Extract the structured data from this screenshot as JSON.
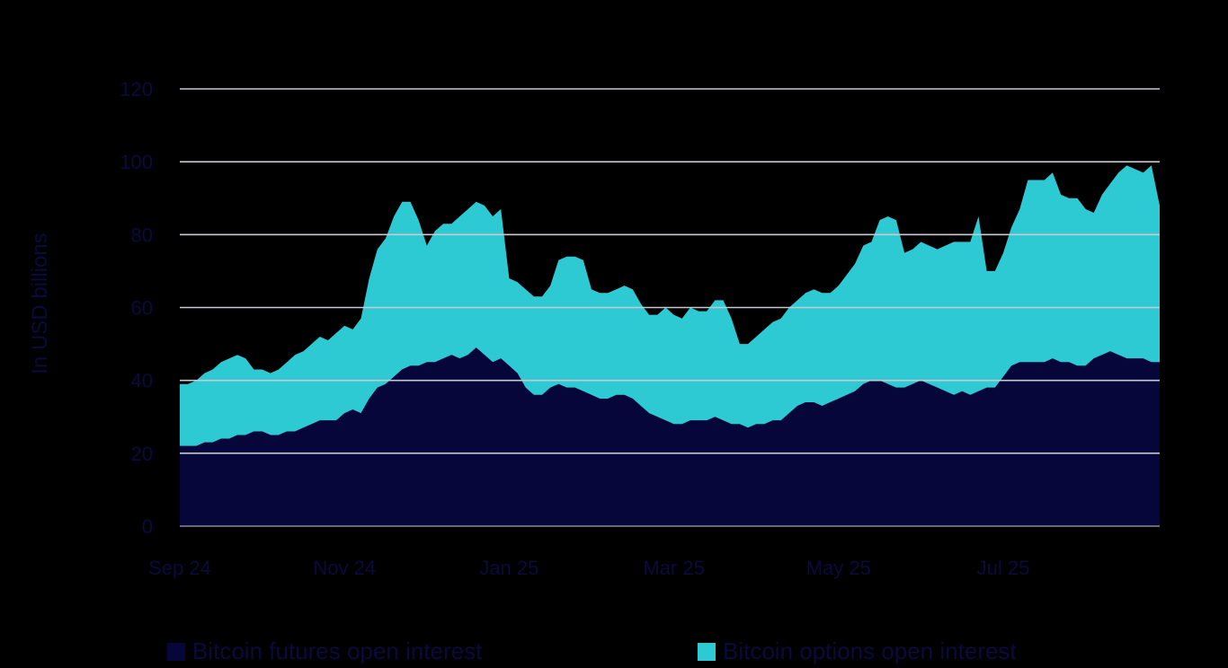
{
  "chart_data": {
    "type": "area",
    "stacked": true,
    "ylabel": "In USD billions",
    "ylim": [
      0,
      120
    ],
    "yticks": [
      0,
      20,
      40,
      60,
      80,
      100,
      120
    ],
    "grid": true,
    "x_tick_labels": [
      "Sep 24",
      "Nov 24",
      "Jan 25",
      "Mar 25",
      "May 25",
      "Jul 25"
    ],
    "x_tick_index": [
      0,
      20,
      40,
      60,
      80,
      100
    ],
    "x_count": 120,
    "legend_position": "bottom",
    "series": [
      {
        "name": "Bitcoin futures open interest",
        "color": "#06063a",
        "values": [
          22,
          22,
          22,
          23,
          23,
          24,
          24,
          25,
          25,
          26,
          26,
          25,
          25,
          26,
          26,
          27,
          28,
          29,
          29,
          29,
          31,
          32,
          31,
          35,
          38,
          39,
          41,
          43,
          44,
          44,
          45,
          45,
          46,
          47,
          46,
          47,
          49,
          47,
          45,
          46,
          44,
          42,
          38,
          36,
          36,
          38,
          39,
          38,
          38,
          37,
          36,
          35,
          35,
          36,
          36,
          35,
          33,
          31,
          30,
          29,
          28,
          28,
          29,
          29,
          29,
          30,
          29,
          28,
          28,
          27,
          28,
          28,
          29,
          29,
          31,
          33,
          34,
          34,
          33,
          34,
          35,
          36,
          37,
          39,
          40,
          40,
          39,
          38,
          38,
          39,
          40,
          39,
          38,
          37,
          36,
          37,
          36,
          37,
          38,
          38,
          41,
          44,
          45,
          45,
          45,
          45,
          46,
          45,
          45,
          44,
          44,
          46,
          47,
          48,
          47,
          46,
          46,
          46,
          45,
          45
        ]
      },
      {
        "name": "Bitcoin options open interest",
        "color": "#2ecad4",
        "values": [
          17,
          17,
          18,
          19,
          20,
          21,
          22,
          22,
          21,
          17,
          17,
          17,
          18,
          19,
          21,
          21,
          22,
          23,
          22,
          24,
          24,
          22,
          26,
          33,
          38,
          40,
          44,
          46,
          45,
          40,
          32,
          36,
          37,
          36,
          39,
          40,
          40,
          41,
          40,
          41,
          24,
          25,
          27,
          27,
          27,
          28,
          34,
          36,
          36,
          36,
          29,
          29,
          29,
          29,
          30,
          30,
          28,
          27,
          28,
          31,
          30,
          29,
          31,
          30,
          30,
          32,
          33,
          29,
          22,
          23,
          24,
          26,
          27,
          28,
          29,
          29,
          30,
          31,
          31,
          30,
          31,
          33,
          35,
          38,
          38,
          44,
          46,
          46,
          37,
          37,
          38,
          38,
          38,
          40,
          42,
          41,
          42,
          48,
          32,
          32,
          34,
          38,
          42,
          50,
          50,
          50,
          51,
          46,
          45,
          46,
          43,
          40,
          44,
          46,
          50,
          53,
          52,
          51,
          54,
          43
        ]
      }
    ]
  }
}
